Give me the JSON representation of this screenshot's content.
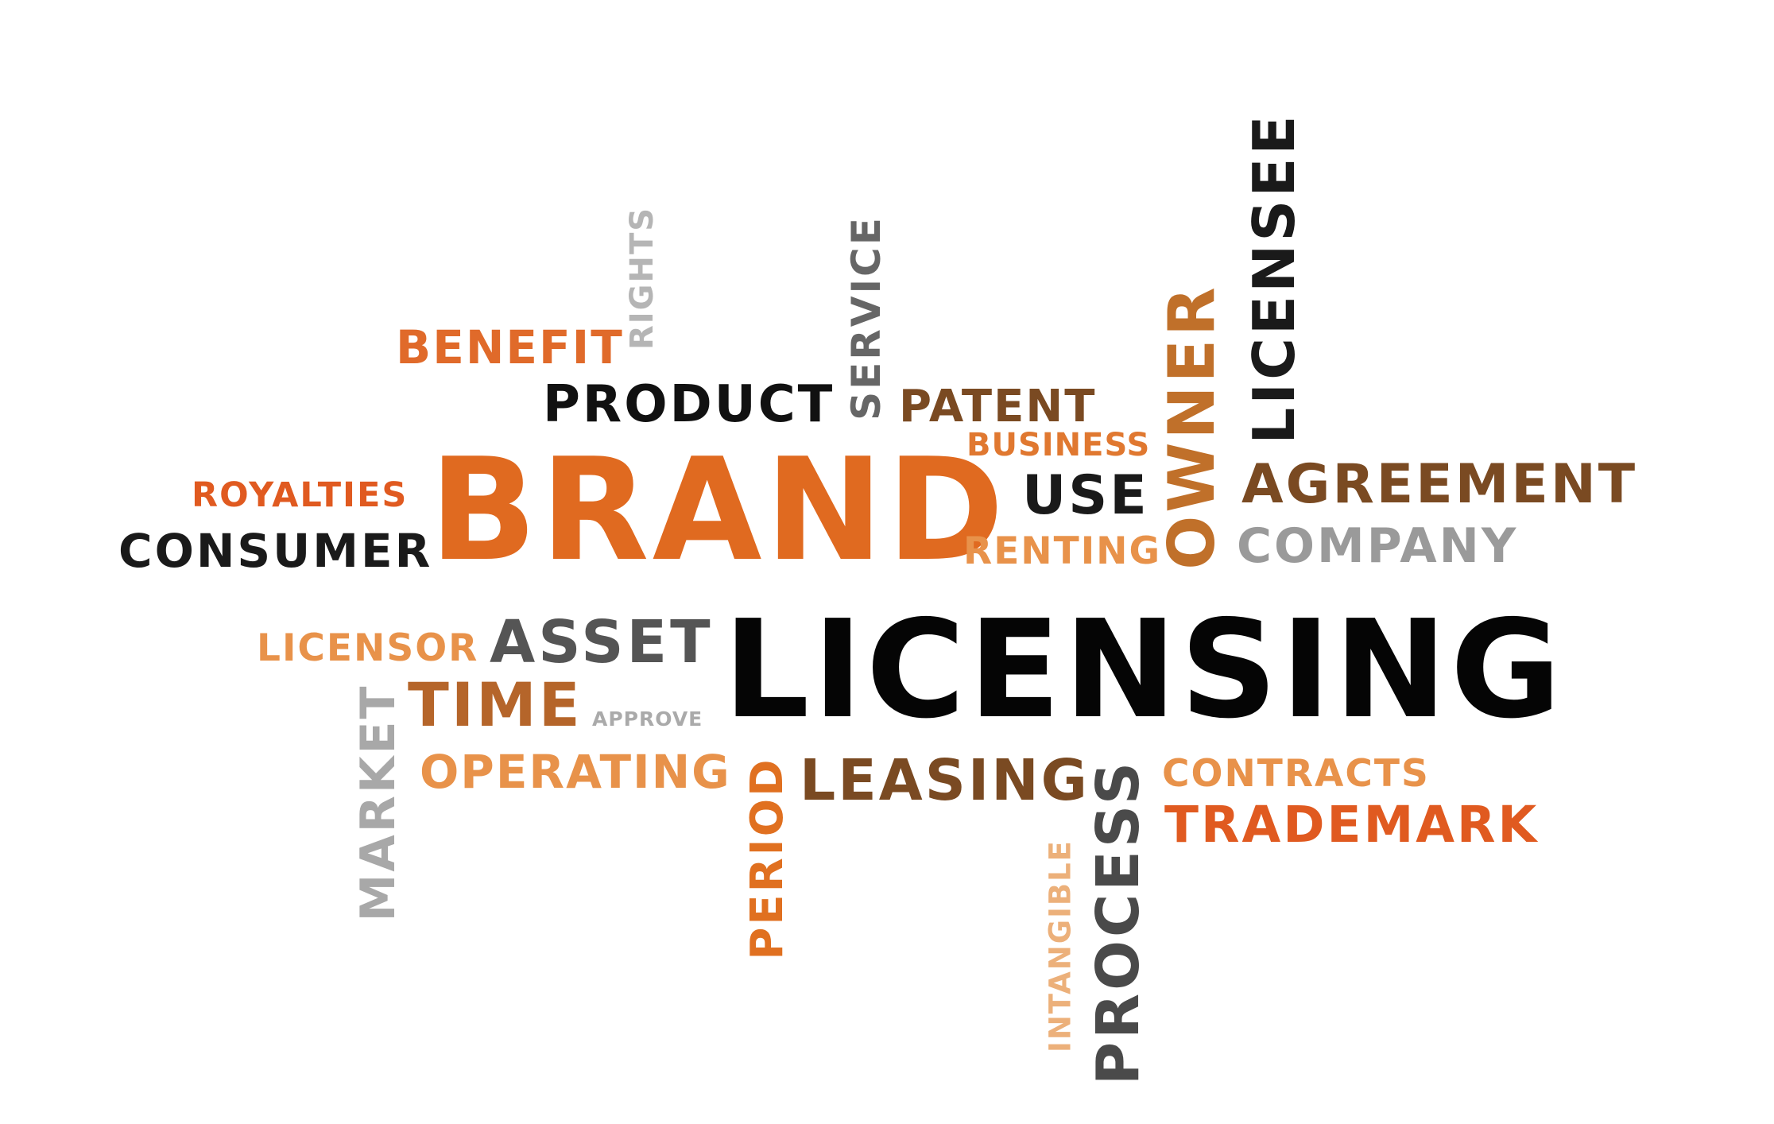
{
  "word_cloud": {
    "words": {
      "benefit": {
        "text": "BENEFIT",
        "color": "#e06a2a"
      },
      "rights": {
        "text": "RIGHTS",
        "color": "#b5b5b5"
      },
      "service": {
        "text": "SERVICE",
        "color": "#666666"
      },
      "owner": {
        "text": "OWNER",
        "color": "#c0702a"
      },
      "licensee": {
        "text": "LICENSEE",
        "color": "#1a1a1a"
      },
      "product": {
        "text": "PRODUCT",
        "color": "#111111"
      },
      "patent": {
        "text": "PATENT",
        "color": "#7a4a22"
      },
      "business": {
        "text": "BUSINESS",
        "color": "#e07830"
      },
      "royalties": {
        "text": "ROYALTIES",
        "color": "#e05a20"
      },
      "brand": {
        "text": "BRAND",
        "color": "#e06a20"
      },
      "use": {
        "text": "USE",
        "color": "#1a1a1a"
      },
      "agreement": {
        "text": "AGREEMENT",
        "color": "#7a4a22"
      },
      "consumer": {
        "text": "CONSUMER",
        "color": "#1a1a1a"
      },
      "renting": {
        "text": "RENTING",
        "color": "#e8924a"
      },
      "company": {
        "text": "COMPANY",
        "color": "#9a9a9a"
      },
      "licensor": {
        "text": "LICENSOR",
        "color": "#e8924a"
      },
      "asset": {
        "text": "ASSET",
        "color": "#555555"
      },
      "licensing": {
        "text": "LICENSING",
        "color": "#050505"
      },
      "time": {
        "text": "TIME",
        "color": "#b5652a"
      },
      "approve": {
        "text": "APPROVE",
        "color": "#aaaaaa"
      },
      "market": {
        "text": "MARKET",
        "color": "#a8a8a8"
      },
      "operating": {
        "text": "OPERATING",
        "color": "#e8924a"
      },
      "period": {
        "text": "PERIOD",
        "color": "#e07020"
      },
      "leasing": {
        "text": "LEASING",
        "color": "#7a4a22"
      },
      "process": {
        "text": "PROCESS",
        "color": "#4a4a4a"
      },
      "contracts": {
        "text": "CONTRACTS",
        "color": "#e8924a"
      },
      "trademark": {
        "text": "TRADEMARK",
        "color": "#e05a20"
      },
      "intangible": {
        "text": "INTANGIBLE",
        "color": "#ecb07a"
      }
    }
  }
}
